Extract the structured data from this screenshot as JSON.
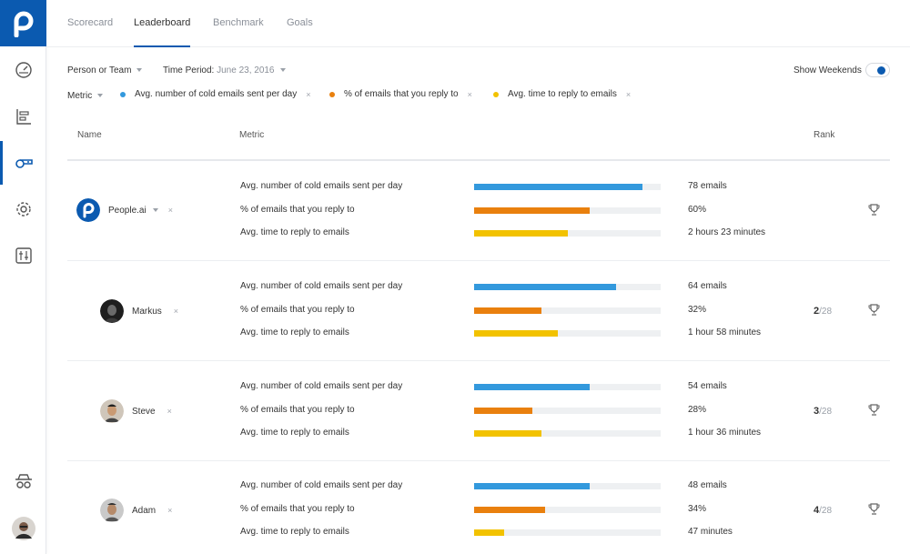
{
  "colors": {
    "brand": "#0b5ab0",
    "blue": "#3399dd",
    "orange": "#e9800e",
    "yellow": "#f2c200"
  },
  "tabs": [
    {
      "label": "Scorecard",
      "active": false
    },
    {
      "label": "Leaderboard",
      "active": true
    },
    {
      "label": "Benchmark",
      "active": false
    },
    {
      "label": "Goals",
      "active": false
    }
  ],
  "filters": {
    "person_or_team": "Person or Team",
    "time_period_label": "Time Period:",
    "time_period_value": "June 23, 2016",
    "show_weekends": "Show Weekends",
    "show_weekends_on": true,
    "metric_label": "Metric",
    "chips": [
      {
        "label": "Avg. number of cold emails sent per day",
        "color": "#3399dd"
      },
      {
        "label": "% of emails that you reply to",
        "color": "#e9800e"
      },
      {
        "label": "Avg. time to reply to emails",
        "color": "#f2c200"
      }
    ],
    "remove_glyph": "×"
  },
  "table": {
    "headers": {
      "name": "Name",
      "metric": "Metric",
      "rank": "Rank"
    },
    "rows": [
      {
        "name": "People.ai",
        "is_team": true,
        "rank": "",
        "rank_total": "",
        "metrics": [
          {
            "label": "Avg. number of cold emails sent per day",
            "value": "78 emails",
            "fraction": 0.9
          },
          {
            "label": "% of emails that you reply to",
            "value": "60%",
            "fraction": 0.62
          },
          {
            "label": "Avg. time to reply to emails",
            "value": "2 hours 23 minutes",
            "fraction": 0.5
          }
        ]
      },
      {
        "name": "Markus",
        "is_team": false,
        "rank": "2",
        "rank_total": "/28",
        "metrics": [
          {
            "label": "Avg. number of cold emails sent per day",
            "value": "64 emails",
            "fraction": 0.76
          },
          {
            "label": "% of emails that you reply to",
            "value": "32%",
            "fraction": 0.36
          },
          {
            "label": "Avg. time to reply to emails",
            "value": "1 hour 58 minutes",
            "fraction": 0.45
          }
        ]
      },
      {
        "name": "Steve",
        "is_team": false,
        "rank": "3",
        "rank_total": "/28",
        "metrics": [
          {
            "label": "Avg. number of cold emails sent per day",
            "value": "54 emails",
            "fraction": 0.62
          },
          {
            "label": "% of emails that you reply to",
            "value": "28%",
            "fraction": 0.31
          },
          {
            "label": "Avg. time to reply to emails",
            "value": "1 hour 36 minutes",
            "fraction": 0.36
          }
        ]
      },
      {
        "name": "Adam",
        "is_team": false,
        "rank": "4",
        "rank_total": "/28",
        "metrics": [
          {
            "label": "Avg. number of cold emails sent per day",
            "value": "48 emails",
            "fraction": 0.62
          },
          {
            "label": "% of emails that you reply to",
            "value": "34%",
            "fraction": 0.38
          },
          {
            "label": "Avg. time to reply to emails",
            "value": "47 minutes",
            "fraction": 0.16
          }
        ]
      }
    ]
  }
}
